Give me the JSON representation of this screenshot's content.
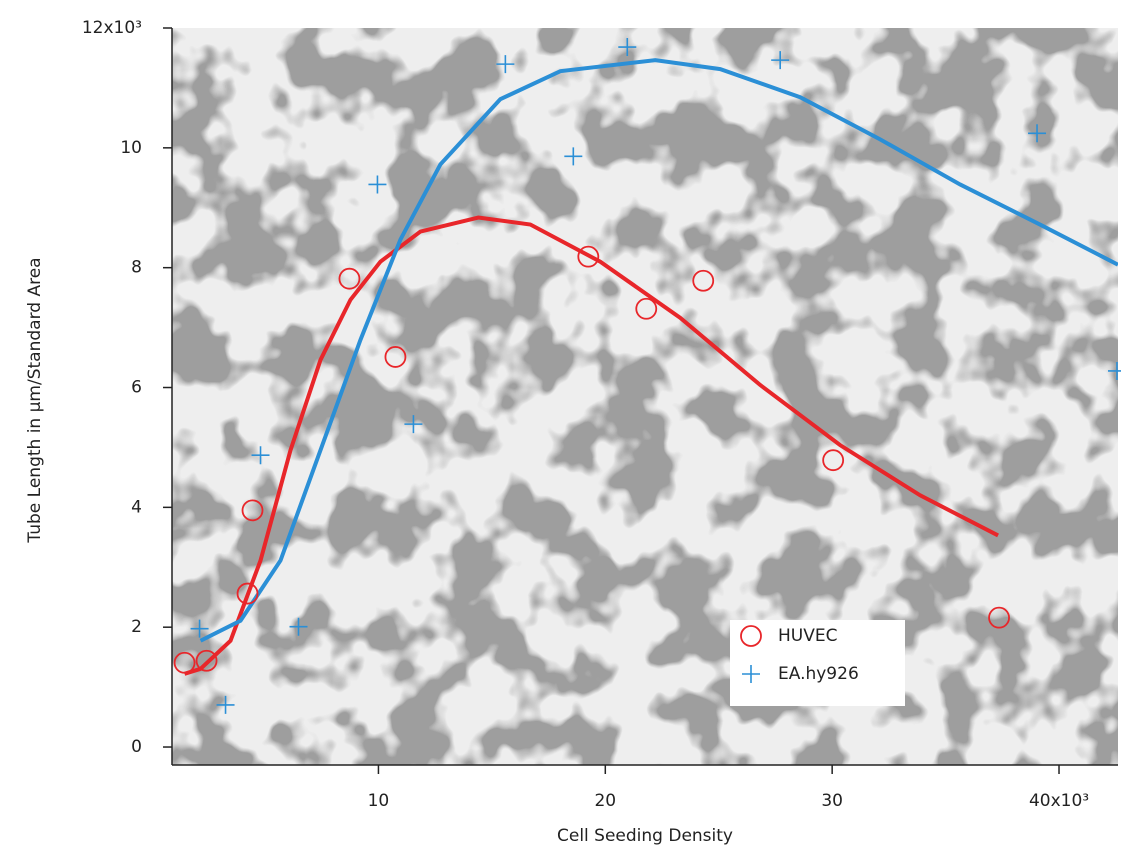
{
  "chart_data": {
    "type": "scatter",
    "xlabel": "Cell Seeding Density",
    "ylabel": "Tube Length in µm/Standard Area",
    "xlim": [
      900,
      42600
    ],
    "ylim": [
      -300,
      12000
    ],
    "xticks": [
      {
        "value": 10000,
        "label": "10"
      },
      {
        "value": 20000,
        "label": "20"
      },
      {
        "value": 30000,
        "label": "30"
      },
      {
        "value": 40000,
        "label": "40x10³"
      }
    ],
    "yticks": [
      0,
      {
        "value": 2000,
        "label": "2"
      },
      {
        "value": 4000,
        "label": "4"
      },
      {
        "value": 6000,
        "label": "6"
      },
      {
        "value": 8000,
        "label": "8"
      },
      {
        "value": 10000,
        "label": "10"
      },
      {
        "value": 12000,
        "label": "12x10³"
      }
    ],
    "grid": false,
    "legend_loc": "lower right",
    "series": [
      {
        "name": "HUVEC",
        "color": "#e8262a",
        "marker": "o",
        "x": [
          1454,
          2423,
          4229,
          4449,
          8722,
          10749,
          19251,
          21806,
          24317,
          30044,
          37357
        ],
        "values": [
          1406,
          1440,
          2561,
          3950,
          7816,
          6510,
          8184,
          7314,
          7782,
          4787,
          2159
        ],
        "fit_x": [
          1454,
          2159,
          3480,
          4802,
          6123,
          7445,
          8767,
          10088,
          11850,
          14405,
          16696,
          19780,
          23304,
          26828,
          30352,
          33877,
          37313
        ],
        "fit_values": [
          1222,
          1305,
          1774,
          3113,
          4954,
          6460,
          7464,
          8100,
          8603,
          8837,
          8720,
          8100,
          7163,
          6042,
          5038,
          4201,
          3531
        ]
      },
      {
        "name": "EA.hy926",
        "color": "#2b8fd6",
        "marker": "+",
        "x": [
          2115,
          3260,
          4802,
          6476,
          9956,
          11542,
          15595,
          18590,
          20969,
          27709,
          39031,
          42555
        ],
        "values": [
          1975,
          703,
          4870,
          2008,
          9389,
          5389,
          11397,
          9858,
          11682,
          11464,
          10243,
          6276
        ],
        "fit_x": [
          2159,
          3921,
          5683,
          7445,
          9207,
          10969,
          12731,
          15374,
          18018,
          22203,
          25066,
          28590,
          32115,
          35639,
          39163,
          42599
        ],
        "fit_values": [
          1774,
          2109,
          3113,
          4954,
          6795,
          8469,
          9724,
          10812,
          11280,
          11464,
          11314,
          10845,
          10142,
          9389,
          8720,
          8050
        ]
      }
    ]
  }
}
